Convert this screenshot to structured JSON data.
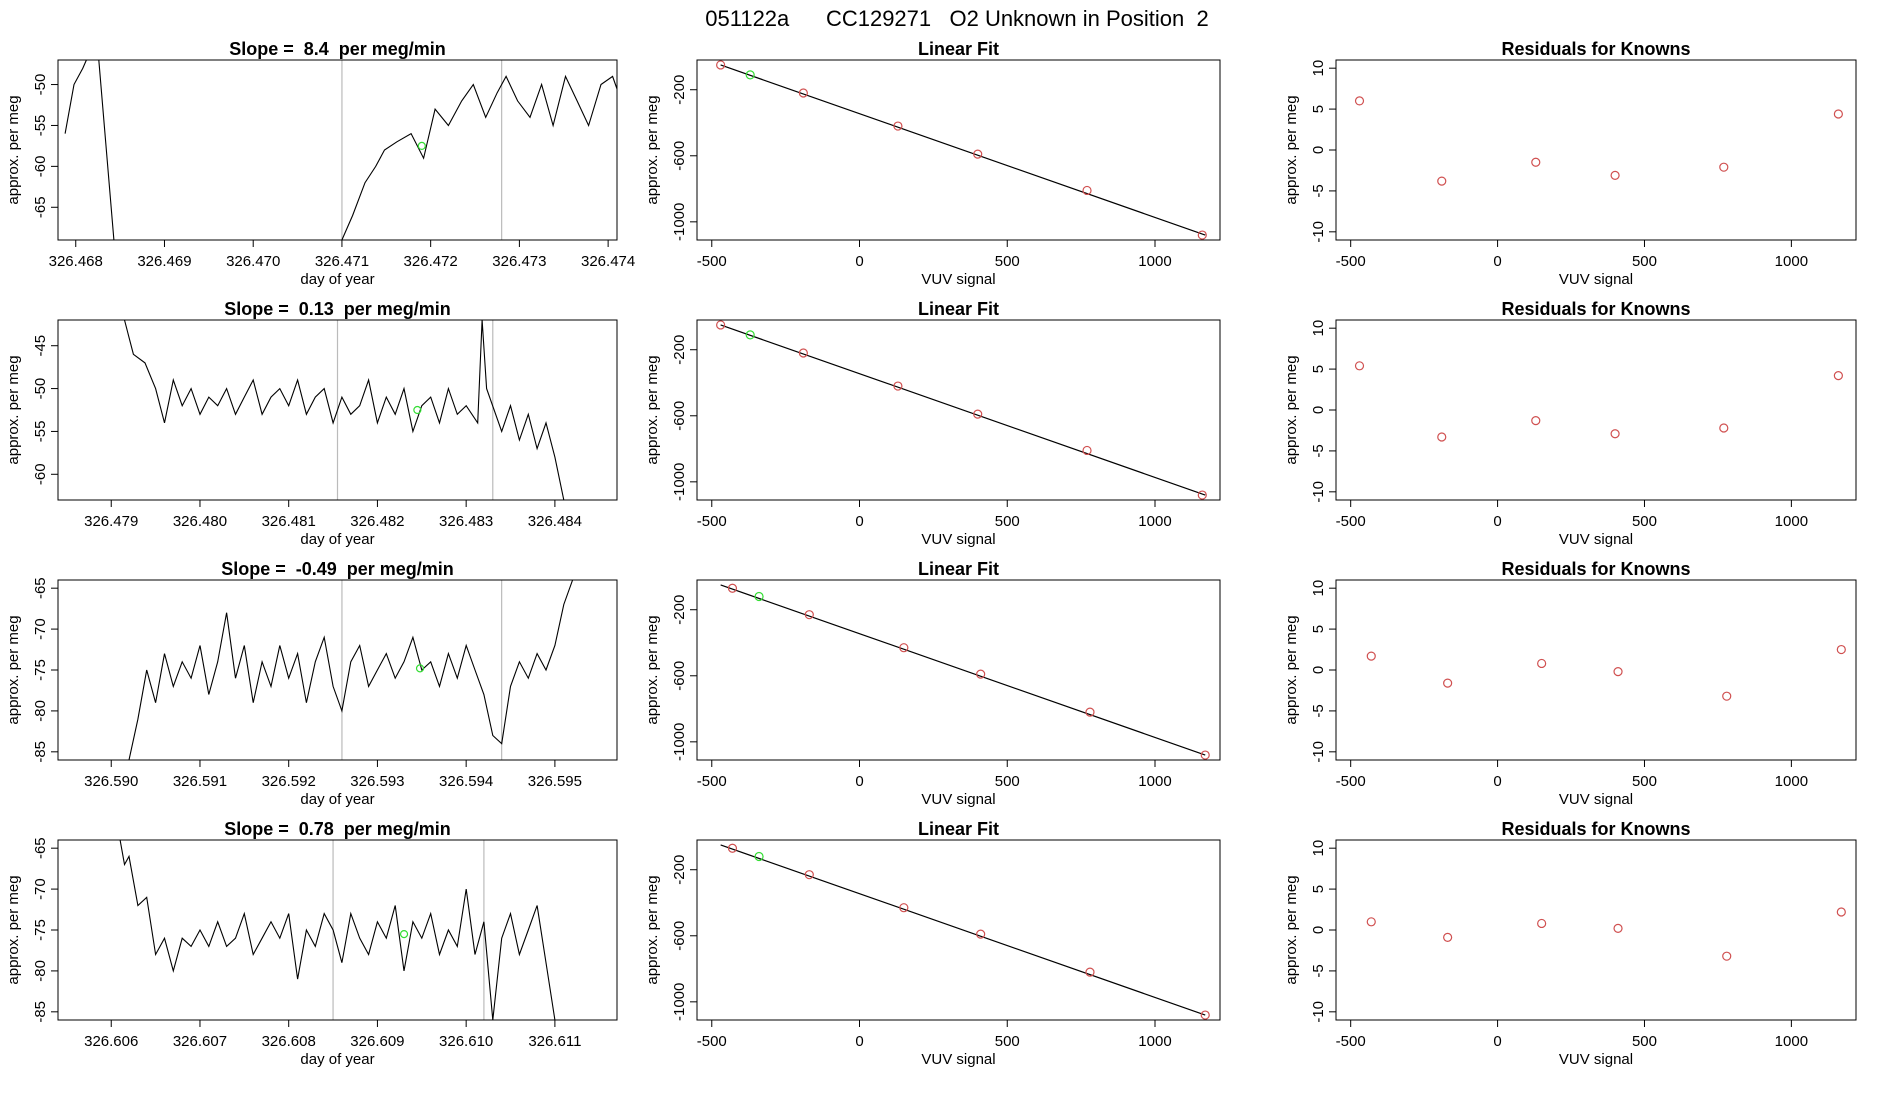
{
  "suptitle": "051122a      CC129271   O2 Unknown in Position  2",
  "colors": {
    "series": "#000000",
    "fit": "#000000",
    "known": "#d05050",
    "unknown": "#33dd33",
    "vline": "#bbbbbb",
    "frame": "#000000"
  },
  "chart_data": [
    {
      "type": "line",
      "panel": "timeseries",
      "row": 1,
      "title": "Slope =  8.4  per meg/min",
      "xlabel": "day of year",
      "ylabel": "approx. per meg",
      "xlim": [
        326.4678,
        326.4741
      ],
      "ylim": [
        -69,
        -47
      ],
      "xticks": [
        326.468,
        326.469,
        326.47,
        326.471,
        326.472,
        326.473,
        326.474
      ],
      "xtick_labels": [
        "326.468",
        "326.469",
        "326.470",
        "326.471",
        "326.472",
        "326.473",
        "326.474"
      ],
      "yticks": [
        -65,
        -60,
        -55,
        -50
      ],
      "ytick_labels": [
        "-65",
        "-60",
        "-55",
        "-50"
      ],
      "vlines": [
        326.471,
        326.4728
      ],
      "series": {
        "x": [
          326.46788,
          326.46798,
          326.46808,
          326.46812,
          326.46826,
          326.46843,
          326.471,
          326.47112,
          326.47126,
          326.47138,
          326.47148,
          326.47162,
          326.47178,
          326.47192,
          326.47205,
          326.4722,
          326.47235,
          326.47248,
          326.47262,
          326.47275,
          326.47285,
          326.47298,
          326.47312,
          326.47325,
          326.47338,
          326.47352,
          326.47365,
          326.47378,
          326.47392,
          326.47405,
          326.47418,
          326.4743,
          326.47445,
          326.47458
        ],
        "y": [
          -56,
          -50,
          -48,
          -47,
          -47,
          -69,
          -69,
          -66,
          -62,
          -60,
          -58,
          -57,
          -56,
          -59,
          -53,
          -55,
          -52,
          -50,
          -54,
          -51,
          -49,
          -52,
          -54,
          -50,
          -55,
          -49,
          -52,
          -55,
          -50,
          -49,
          -53,
          -49,
          -51,
          -48
        ]
      },
      "unknown_point": {
        "x": 326.4719,
        "y": -57.5
      }
    },
    {
      "type": "scatter",
      "panel": "linear_fit",
      "row": 1,
      "title": "Linear Fit",
      "xlabel": "VUV signal",
      "ylabel": "approx. per meg",
      "xlim": [
        -550,
        1220
      ],
      "ylim": [
        -1110,
        -20
      ],
      "xticks": [
        -500,
        0,
        500,
        1000
      ],
      "xtick_labels": [
        "-500",
        "0",
        "500",
        "1000"
      ],
      "yticks": [
        -1000,
        -600,
        -200
      ],
      "ytick_labels": [
        "-1000",
        "-600",
        "-200"
      ],
      "fit_line": {
        "x": [
          -470,
          1170
        ],
        "y": [
          -50,
          -1080
        ]
      },
      "knowns": {
        "x": [
          -470,
          -190,
          130,
          400,
          770,
          1160
        ],
        "y": [
          -50,
          -220,
          -420,
          -590,
          -810,
          -1080
        ]
      },
      "unknown": {
        "x": -370,
        "y": -110
      }
    },
    {
      "type": "scatter",
      "panel": "residuals",
      "row": 1,
      "title": "Residuals for Knowns",
      "xlabel": "VUV signal",
      "ylabel": "approx. per meg",
      "xlim": [
        -550,
        1220
      ],
      "ylim": [
        -11,
        11
      ],
      "xticks": [
        -500,
        0,
        500,
        1000
      ],
      "xtick_labels": [
        "-500",
        "0",
        "500",
        "1000"
      ],
      "yticks": [
        -10,
        -5,
        0,
        5,
        10
      ],
      "ytick_labels": [
        "-10",
        "-5",
        "0",
        "5",
        "10"
      ],
      "points": {
        "x": [
          -470,
          -190,
          130,
          400,
          770,
          1160
        ],
        "y": [
          6,
          -3.8,
          -1.5,
          -3.1,
          -2.1,
          4.4
        ]
      }
    },
    {
      "type": "line",
      "panel": "timeseries",
      "row": 2,
      "title": "Slope =  0.13  per meg/min",
      "xlabel": "day of year",
      "ylabel": "approx. per meg",
      "xlim": [
        326.4784,
        326.4847
      ],
      "ylim": [
        -63,
        -42
      ],
      "xticks": [
        326.479,
        326.48,
        326.481,
        326.482,
        326.483,
        326.484
      ],
      "xtick_labels": [
        "326.479",
        "326.480",
        "326.481",
        "326.482",
        "326.483",
        "326.484"
      ],
      "yticks": [
        -60,
        -55,
        -50,
        -45
      ],
      "ytick_labels": [
        "-60",
        "-55",
        "-50",
        "-45"
      ],
      "vlines": [
        326.48155,
        326.4833
      ],
      "series": {
        "x": [
          326.47915,
          326.47925,
          326.47938,
          326.4795,
          326.4796,
          326.4797,
          326.4798,
          326.4799,
          326.48,
          326.4801,
          326.4802,
          326.4803,
          326.4804,
          326.4805,
          326.4806,
          326.4807,
          326.4808,
          326.4809,
          326.481,
          326.4811,
          326.4812,
          326.4813,
          326.4814,
          326.4815,
          326.4816,
          326.4817,
          326.4818,
          326.4819,
          326.482,
          326.4821,
          326.4822,
          326.4823,
          326.4824,
          326.4825,
          326.4826,
          326.4827,
          326.4828,
          326.4829,
          326.483,
          326.48313,
          326.48318,
          326.48323,
          326.4834,
          326.4835,
          326.4836,
          326.4837,
          326.4838,
          326.4839,
          326.484,
          326.4841
        ],
        "y": [
          -42,
          -46,
          -47,
          -50,
          -54,
          -49,
          -52,
          -50,
          -53,
          -51,
          -52,
          -50,
          -53,
          -51,
          -49,
          -53,
          -51,
          -50,
          -52,
          -49,
          -53,
          -51,
          -50,
          -54,
          -51,
          -53,
          -52,
          -49,
          -54,
          -51,
          -53,
          -50,
          -55,
          -52,
          -51,
          -54,
          -50,
          -53,
          -52,
          -54,
          -42,
          -50,
          -55,
          -52,
          -56,
          -53,
          -57,
          -54,
          -58,
          -63
        ]
      },
      "unknown_point": {
        "x": 326.48245,
        "y": -52.5
      }
    },
    {
      "type": "scatter",
      "panel": "linear_fit",
      "row": 2,
      "title": "Linear Fit",
      "xlabel": "VUV signal",
      "ylabel": "approx. per meg",
      "xlim": [
        -550,
        1220
      ],
      "ylim": [
        -1110,
        -20
      ],
      "xticks": [
        -500,
        0,
        500,
        1000
      ],
      "xtick_labels": [
        "-500",
        "0",
        "500",
        "1000"
      ],
      "yticks": [
        -1000,
        -600,
        -200
      ],
      "ytick_labels": [
        "-1000",
        "-600",
        "-200"
      ],
      "fit_line": {
        "x": [
          -470,
          1170
        ],
        "y": [
          -50,
          -1080
        ]
      },
      "knowns": {
        "x": [
          -470,
          -190,
          130,
          400,
          770,
          1160
        ],
        "y": [
          -50,
          -220,
          -420,
          -590,
          -810,
          -1080
        ]
      },
      "unknown": {
        "x": -370,
        "y": -110
      }
    },
    {
      "type": "scatter",
      "panel": "residuals",
      "row": 2,
      "title": "Residuals for Knowns",
      "xlabel": "VUV signal",
      "ylabel": "approx. per meg",
      "xlim": [
        -550,
        1220
      ],
      "ylim": [
        -11,
        11
      ],
      "xticks": [
        -500,
        0,
        500,
        1000
      ],
      "xtick_labels": [
        "-500",
        "0",
        "500",
        "1000"
      ],
      "yticks": [
        -10,
        -5,
        0,
        5,
        10
      ],
      "ytick_labels": [
        "-10",
        "-5",
        "0",
        "5",
        "10"
      ],
      "points": {
        "x": [
          -470,
          -190,
          130,
          400,
          770,
          1160
        ],
        "y": [
          5.4,
          -3.3,
          -1.3,
          -2.9,
          -2.2,
          4.2
        ]
      }
    },
    {
      "type": "line",
      "panel": "timeseries",
      "row": 3,
      "title": "Slope =  -0.49  per meg/min",
      "xlabel": "day of year",
      "ylabel": "approx. per meg",
      "xlim": [
        326.5894,
        326.5957
      ],
      "ylim": [
        -86,
        -64
      ],
      "xticks": [
        326.59,
        326.591,
        326.592,
        326.593,
        326.594,
        326.595
      ],
      "xtick_labels": [
        "326.590",
        "326.591",
        "326.592",
        "326.593",
        "326.594",
        "326.595"
      ],
      "yticks": [
        -85,
        -80,
        -75,
        -70,
        -65
      ],
      "ytick_labels": [
        "-85",
        "-80",
        "-75",
        "-70",
        "-65"
      ],
      "vlines": [
        326.5926,
        326.5944
      ],
      "series": {
        "x": [
          326.5902,
          326.5903,
          326.5904,
          326.5905,
          326.5906,
          326.5907,
          326.5908,
          326.5909,
          326.591,
          326.5911,
          326.5912,
          326.5913,
          326.5914,
          326.5915,
          326.5916,
          326.5917,
          326.5918,
          326.5919,
          326.592,
          326.5921,
          326.5922,
          326.5923,
          326.5924,
          326.5925,
          326.5926,
          326.5927,
          326.5928,
          326.5929,
          326.593,
          326.5931,
          326.5932,
          326.5933,
          326.5934,
          326.5935,
          326.5936,
          326.5937,
          326.5938,
          326.5939,
          326.594,
          326.5941,
          326.5942,
          326.5943,
          326.5944,
          326.5945,
          326.5946,
          326.5947,
          326.5948,
          326.5949,
          326.595,
          326.5951,
          326.5952
        ],
        "y": [
          -86,
          -81,
          -75,
          -79,
          -73,
          -77,
          -74,
          -76,
          -72,
          -78,
          -74,
          -68,
          -76,
          -72,
          -79,
          -74,
          -77,
          -72,
          -76,
          -73,
          -79,
          -74,
          -71,
          -77,
          -80,
          -74,
          -72,
          -77,
          -75,
          -73,
          -76,
          -74,
          -71,
          -75,
          -74,
          -77,
          -73,
          -76,
          -72,
          -75,
          -78,
          -83,
          -84,
          -77,
          -74,
          -76,
          -73,
          -75,
          -72,
          -67,
          -64
        ]
      },
      "unknown_point": {
        "x": 326.59348,
        "y": -74.8
      }
    },
    {
      "type": "scatter",
      "panel": "linear_fit",
      "row": 3,
      "title": "Linear Fit",
      "xlabel": "VUV signal",
      "ylabel": "approx. per meg",
      "xlim": [
        -550,
        1220
      ],
      "ylim": [
        -1110,
        -20
      ],
      "xticks": [
        -500,
        0,
        500,
        1000
      ],
      "xtick_labels": [
        "-500",
        "0",
        "500",
        "1000"
      ],
      "yticks": [
        -1000,
        -600,
        -200
      ],
      "ytick_labels": [
        "-1000",
        "-600",
        "-200"
      ],
      "fit_line": {
        "x": [
          -470,
          1170
        ],
        "y": [
          -50,
          -1080
        ]
      },
      "knowns": {
        "x": [
          -430,
          -170,
          150,
          410,
          780,
          1170
        ],
        "y": [
          -70,
          -230,
          -430,
          -590,
          -820,
          -1080
        ]
      },
      "unknown": {
        "x": -340,
        "y": -120
      }
    },
    {
      "type": "scatter",
      "panel": "residuals",
      "row": 3,
      "title": "Residuals for Knowns",
      "xlabel": "VUV signal",
      "ylabel": "approx. per meg",
      "xlim": [
        -550,
        1220
      ],
      "ylim": [
        -11,
        11
      ],
      "xticks": [
        -500,
        0,
        500,
        1000
      ],
      "xtick_labels": [
        "-500",
        "0",
        "500",
        "1000"
      ],
      "yticks": [
        -10,
        -5,
        0,
        5,
        10
      ],
      "ytick_labels": [
        "-10",
        "-5",
        "0",
        "5",
        "10"
      ],
      "points": {
        "x": [
          -430,
          -170,
          150,
          410,
          780,
          1170
        ],
        "y": [
          1.7,
          -1.6,
          0.8,
          -0.2,
          -3.2,
          2.5
        ]
      }
    },
    {
      "type": "line",
      "panel": "timeseries",
      "row": 4,
      "title": "Slope =  0.78  per meg/min",
      "xlabel": "day of year",
      "ylabel": "approx. per meg",
      "xlim": [
        326.6054,
        326.6117
      ],
      "ylim": [
        -86,
        -64
      ],
      "xticks": [
        326.606,
        326.607,
        326.608,
        326.609,
        326.61,
        326.611
      ],
      "xtick_labels": [
        "326.606",
        "326.607",
        "326.608",
        "326.609",
        "326.610",
        "326.611"
      ],
      "yticks": [
        -85,
        -80,
        -75,
        -70,
        -65
      ],
      "ytick_labels": [
        "-85",
        "-80",
        "-75",
        "-70",
        "-65"
      ],
      "vlines": [
        326.6085,
        326.6102
      ],
      "series": {
        "x": [
          326.6061,
          326.60615,
          326.6062,
          326.6063,
          326.6064,
          326.6065,
          326.6066,
          326.6067,
          326.6068,
          326.6069,
          326.607,
          326.6071,
          326.6072,
          326.6073,
          326.6074,
          326.6075,
          326.6076,
          326.6077,
          326.6078,
          326.6079,
          326.608,
          326.6081,
          326.6082,
          326.6083,
          326.6084,
          326.6085,
          326.6086,
          326.6087,
          326.6088,
          326.6089,
          326.609,
          326.6091,
          326.6092,
          326.6093,
          326.6094,
          326.6095,
          326.6096,
          326.6097,
          326.6098,
          326.6099,
          326.61,
          326.6101,
          326.6102,
          326.6103,
          326.6104,
          326.6105,
          326.6106,
          326.6107,
          326.6108,
          326.6109,
          326.611
        ],
        "y": [
          -64,
          -67,
          -66,
          -72,
          -71,
          -78,
          -76,
          -80,
          -76,
          -77,
          -75,
          -77,
          -74,
          -77,
          -76,
          -73,
          -78,
          -76,
          -74,
          -76,
          -73,
          -81,
          -75,
          -77,
          -73,
          -75,
          -79,
          -73,
          -76,
          -78,
          -74,
          -76,
          -72,
          -80,
          -74,
          -76,
          -73,
          -78,
          -75,
          -77,
          -70,
          -78,
          -74,
          -86,
          -76,
          -73,
          -78,
          -75,
          -72,
          -79,
          -86
        ]
      },
      "unknown_point": {
        "x": 326.6093,
        "y": -75.5
      }
    },
    {
      "type": "scatter",
      "panel": "linear_fit",
      "row": 4,
      "title": "Linear Fit",
      "xlabel": "VUV signal",
      "ylabel": "approx. per meg",
      "xlim": [
        -550,
        1220
      ],
      "ylim": [
        -1110,
        -20
      ],
      "xticks": [
        -500,
        0,
        500,
        1000
      ],
      "xtick_labels": [
        "-500",
        "0",
        "500",
        "1000"
      ],
      "yticks": [
        -1000,
        -600,
        -200
      ],
      "ytick_labels": [
        "-1000",
        "-600",
        "-200"
      ],
      "fit_line": {
        "x": [
          -470,
          1170
        ],
        "y": [
          -50,
          -1080
        ]
      },
      "knowns": {
        "x": [
          -430,
          -170,
          150,
          410,
          780,
          1170
        ],
        "y": [
          -70,
          -230,
          -430,
          -590,
          -820,
          -1080
        ]
      },
      "unknown": {
        "x": -340,
        "y": -120
      }
    },
    {
      "type": "scatter",
      "panel": "residuals",
      "row": 4,
      "title": "Residuals for Knowns",
      "xlabel": "VUV signal",
      "ylabel": "approx. per meg",
      "xlim": [
        -550,
        1220
      ],
      "ylim": [
        -11,
        11
      ],
      "xticks": [
        -500,
        0,
        500,
        1000
      ],
      "xtick_labels": [
        "-500",
        "0",
        "500",
        "1000"
      ],
      "yticks": [
        -10,
        -5,
        0,
        5,
        10
      ],
      "ytick_labels": [
        "-10",
        "-5",
        "0",
        "5",
        "10"
      ],
      "points": {
        "x": [
          -430,
          -170,
          150,
          410,
          780,
          1170
        ],
        "y": [
          1.0,
          -0.9,
          0.8,
          0.2,
          -3.2,
          2.2
        ]
      }
    }
  ]
}
